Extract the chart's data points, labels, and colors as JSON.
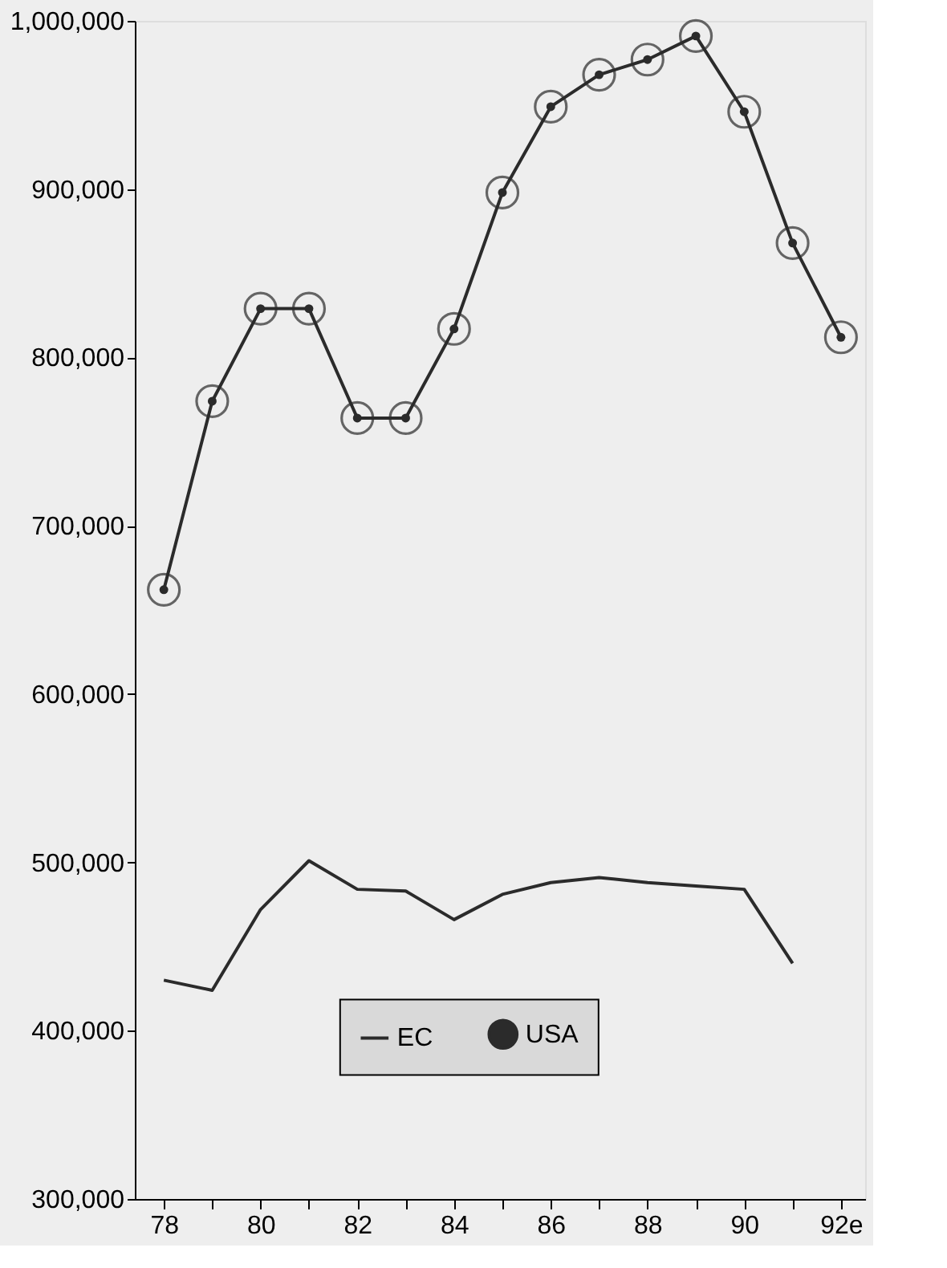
{
  "chart_data": {
    "type": "line",
    "x": [
      78,
      79,
      80,
      81,
      82,
      83,
      84,
      85,
      86,
      87,
      88,
      89,
      90,
      91,
      92
    ],
    "xlim": [
      77.4,
      92.5
    ],
    "xticks": [
      78,
      {
        "value": 79,
        "label": null
      },
      80,
      {
        "value": 81,
        "label": null
      },
      82,
      {
        "value": 83,
        "label": null
      },
      84,
      {
        "value": 85,
        "label": null
      },
      86,
      {
        "value": 87,
        "label": null
      },
      88,
      {
        "value": 89,
        "label": null
      },
      90,
      {
        "value": 91,
        "label": null
      },
      {
        "value": 92,
        "label": "92e"
      }
    ],
    "ylim": [
      300000,
      1000000
    ],
    "yticks": [
      {
        "value": 300000,
        "label": "300,000"
      },
      {
        "value": 400000,
        "label": "400,000"
      },
      {
        "value": 500000,
        "label": "500,000"
      },
      {
        "value": 600000,
        "label": "600,000"
      },
      {
        "value": 700000,
        "label": "700,000"
      },
      {
        "value": 800000,
        "label": "800,000"
      },
      {
        "value": 900000,
        "label": "900,000"
      },
      {
        "value": 1000000,
        "label": "1,000,000"
      }
    ],
    "grid": false,
    "legend": "bottom",
    "series": [
      {
        "name": "EC",
        "color": "#2b2b2b",
        "marker": "none",
        "values": [
          430000,
          424000,
          472000,
          501000,
          484000,
          483000,
          466000,
          481000,
          488000,
          491000,
          488000,
          486000,
          484000,
          440000,
          null
        ]
      },
      {
        "name": "USA",
        "color": "#2b2b2b",
        "marker": "circle",
        "values": [
          662000,
          774000,
          829000,
          829000,
          764000,
          764000,
          817000,
          898000,
          949000,
          968000,
          977000,
          991000,
          946000,
          868000,
          812000
        ]
      }
    ]
  }
}
